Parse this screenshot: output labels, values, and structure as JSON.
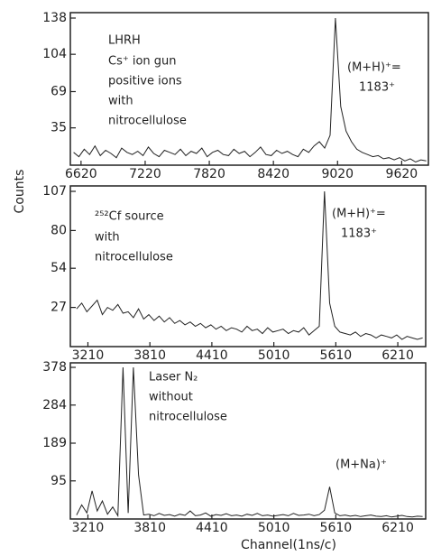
{
  "chart_data": [
    {
      "type": "line",
      "x": [
        6550,
        6600,
        6650,
        6700,
        6750,
        6800,
        6850,
        6900,
        6950,
        7000,
        7050,
        7100,
        7150,
        7200,
        7250,
        7300,
        7350,
        7400,
        7450,
        7500,
        7550,
        7600,
        7650,
        7700,
        7750,
        7800,
        7850,
        7900,
        7950,
        8000,
        8050,
        8100,
        8150,
        8200,
        8250,
        8300,
        8350,
        8400,
        8450,
        8500,
        8550,
        8600,
        8650,
        8700,
        8750,
        8800,
        8850,
        8900,
        8950,
        9000,
        9050,
        9100,
        9150,
        9200,
        9250,
        9300,
        9350,
        9400,
        9450,
        9500,
        9550,
        9600,
        9650,
        9700,
        9750,
        9800,
        9850
      ],
      "series": [
        {
          "color": "#222222",
          "values": [
            12,
            8,
            15,
            10,
            18,
            9,
            14,
            11,
            7,
            16,
            12,
            10,
            13,
            9,
            17,
            11,
            8,
            14,
            12,
            10,
            15,
            9,
            13,
            11,
            16,
            8,
            12,
            14,
            10,
            9,
            15,
            11,
            13,
            8,
            12,
            17,
            10,
            9,
            14,
            11,
            13,
            10,
            8,
            15,
            12,
            18,
            22,
            16,
            28,
            138,
            55,
            32,
            22,
            15,
            12,
            10,
            8,
            9,
            6,
            7,
            5,
            7,
            4,
            6,
            3,
            5,
            4
          ]
        }
      ],
      "xlim": [
        6520,
        9870
      ],
      "xticks": [
        6620,
        7220,
        7820,
        8420,
        9020,
        9620
      ],
      "ylim": [
        0,
        138
      ],
      "yticks": [
        35,
        69,
        104,
        138
      ],
      "annotations": [
        "LHRH",
        "Cs⁺ ion gun",
        "positive ions",
        "with",
        "nitrocellulose",
        "(M+H)⁺=",
        "1183⁺"
      ]
    },
    {
      "type": "line",
      "x": [
        3100,
        3150,
        3200,
        3250,
        3300,
        3350,
        3400,
        3450,
        3500,
        3550,
        3600,
        3650,
        3700,
        3750,
        3800,
        3850,
        3900,
        3950,
        4000,
        4050,
        4100,
        4150,
        4200,
        4250,
        4300,
        4350,
        4400,
        4450,
        4500,
        4550,
        4600,
        4650,
        4700,
        4750,
        4800,
        4850,
        4900,
        4950,
        5000,
        5050,
        5100,
        5150,
        5200,
        5250,
        5300,
        5350,
        5400,
        5450,
        5500,
        5550,
        5600,
        5650,
        5700,
        5750,
        5800,
        5850,
        5900,
        5950,
        6000,
        6050,
        6100,
        6150,
        6200,
        6250,
        6300,
        6350,
        6400,
        6450
      ],
      "series": [
        {
          "color": "#222222",
          "values": [
            26,
            30,
            24,
            28,
            32,
            22,
            27,
            25,
            29,
            23,
            24,
            20,
            26,
            19,
            22,
            18,
            21,
            17,
            20,
            16,
            18,
            15,
            17,
            14,
            16,
            13,
            15,
            12,
            14,
            11,
            13,
            12,
            10,
            14,
            11,
            12,
            9,
            13,
            10,
            11,
            12,
            9,
            11,
            10,
            13,
            8,
            11,
            14,
            107,
            30,
            14,
            10,
            9,
            8,
            10,
            7,
            9,
            8,
            6,
            8,
            7,
            6,
            8,
            5,
            7,
            6,
            5,
            6
          ]
        }
      ],
      "xlim": [
        3040,
        6480
      ],
      "xticks": [
        3210,
        3810,
        4410,
        5010,
        5610,
        6210
      ],
      "ylim": [
        0,
        107
      ],
      "yticks": [
        27,
        54,
        80,
        107
      ],
      "ylabel": "Counts",
      "annotations": [
        "²⁵²Cf source",
        "with",
        "nitrocellulose",
        "(M+H)⁺=",
        "1183⁺"
      ]
    },
    {
      "type": "line",
      "x": [
        3100,
        3150,
        3200,
        3250,
        3300,
        3350,
        3400,
        3450,
        3500,
        3550,
        3600,
        3650,
        3700,
        3750,
        3800,
        3850,
        3900,
        3950,
        4000,
        4050,
        4100,
        4150,
        4200,
        4250,
        4300,
        4350,
        4400,
        4450,
        4500,
        4550,
        4600,
        4650,
        4700,
        4750,
        4800,
        4850,
        4900,
        4950,
        5000,
        5050,
        5100,
        5150,
        5200,
        5250,
        5300,
        5350,
        5400,
        5450,
        5500,
        5550,
        5600,
        5650,
        5700,
        5750,
        5800,
        5850,
        5900,
        5950,
        6000,
        6050,
        6100,
        6150,
        6200,
        6250,
        6300,
        6350,
        6400,
        6450
      ],
      "series": [
        {
          "color": "#222222",
          "values": [
            10,
            35,
            15,
            70,
            20,
            45,
            12,
            30,
            8,
            378,
            15,
            378,
            110,
            10,
            12,
            8,
            14,
            9,
            11,
            7,
            12,
            9,
            20,
            8,
            10,
            15,
            7,
            11,
            9,
            13,
            8,
            10,
            7,
            12,
            9,
            14,
            8,
            10,
            7,
            9,
            11,
            8,
            14,
            9,
            10,
            12,
            8,
            11,
            22,
            80,
            15,
            8,
            10,
            7,
            9,
            6,
            8,
            10,
            7,
            6,
            8,
            5,
            7,
            9,
            6,
            5,
            7,
            6
          ]
        }
      ],
      "xlim": [
        3040,
        6480
      ],
      "xticks": [
        3210,
        3810,
        4410,
        5010,
        5610,
        6210
      ],
      "ylim": [
        0,
        378
      ],
      "yticks": [
        95,
        189,
        284,
        378
      ],
      "xlabel": "Channel(1ns/c)",
      "annotations": [
        "Laser N₂",
        "without",
        "nitrocellulose",
        "(M+Na)⁺"
      ]
    }
  ]
}
